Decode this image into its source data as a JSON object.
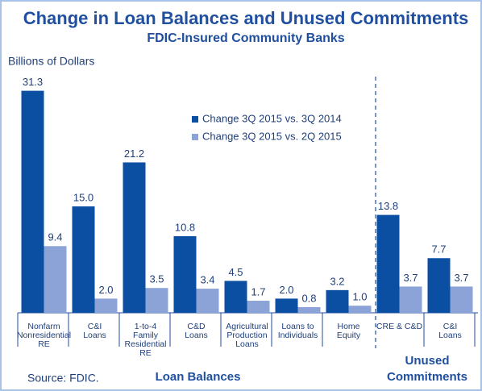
{
  "chart_data": {
    "type": "bar",
    "title": "Change in Loan Balances and Unused Commitments",
    "subtitle": "FDIC-Insured Community Banks",
    "y_label": "Billions of Dollars",
    "source": "Source: FDIC.",
    "categories": [
      [
        "Nonfarm",
        "Nonresidential",
        "RE"
      ],
      [
        "C&I",
        "Loans"
      ],
      [
        "1-to-4",
        "Family",
        "Residential",
        "RE"
      ],
      [
        "C&D",
        "Loans"
      ],
      [
        "Agricultural",
        "Production",
        "Loans"
      ],
      [
        "Loans to",
        "Individuals"
      ],
      [
        "Home",
        "Equity"
      ],
      [
        "CRE & C&D"
      ],
      [
        "C&I",
        "Loans"
      ]
    ],
    "groups": [
      [
        "Loan Balances"
      ],
      [
        "Unused",
        "Commitments"
      ]
    ],
    "series": [
      {
        "name": "Change 3Q 2015 vs. 3Q 2014",
        "color": "#0b4fa3",
        "values": [
          31.3,
          15.0,
          21.2,
          10.8,
          4.5,
          2.0,
          3.2,
          13.8,
          7.7
        ],
        "value_labels": [
          "31.3",
          "15.0",
          "21.2",
          "10.8",
          "4.5",
          "2.0",
          "3.2",
          "13.8",
          "7.7"
        ]
      },
      {
        "name": "Change 3Q 2015 vs. 2Q 2015",
        "color": "#8ba3d7",
        "values": [
          9.4,
          2.0,
          3.5,
          3.4,
          1.7,
          0.8,
          1.0,
          3.7,
          3.7
        ],
        "value_labels": [
          "9.4",
          "2.0",
          "3.5",
          "3.4",
          "1.7",
          "0.8",
          "1.0",
          "3.7",
          "3.7"
        ]
      }
    ],
    "ylim": [
      0,
      33.3
    ]
  }
}
